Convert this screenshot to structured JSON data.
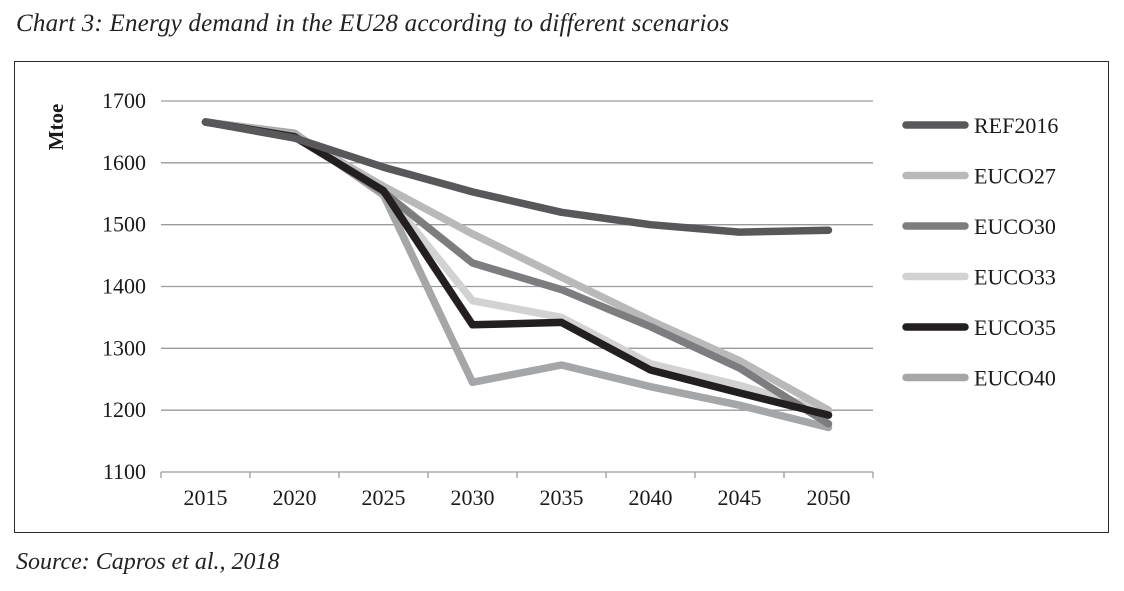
{
  "title": "Chart 3: Energy demand in the EU28 according to different scenarios",
  "source": "Source: Capros et al., 2018",
  "chart_data": {
    "type": "line",
    "title": "Chart 3: Energy demand in the EU28 according to different scenarios",
    "xlabel": "",
    "ylabel": "Mtoe",
    "x": [
      "2015",
      "2020",
      "2025",
      "2030",
      "2035",
      "2040",
      "2045",
      "2050"
    ],
    "ylim": [
      1100,
      1700
    ],
    "yticks": [
      1100,
      1200,
      1300,
      1400,
      1500,
      1600,
      1700
    ],
    "grid": true,
    "legend_position": "right",
    "series": [
      {
        "name": "REF2016",
        "color": "#58585a",
        "values": [
          1666,
          1640,
          1593,
          1553,
          1520,
          1500,
          1488,
          1491
        ]
      },
      {
        "name": "EUCO27",
        "color": "#b9b9b9",
        "values": [
          1666,
          1645,
          1562,
          1485,
          1415,
          1345,
          1280,
          1200
        ]
      },
      {
        "name": "EUCO30",
        "color": "#7d7d7f",
        "values": [
          1666,
          1643,
          1553,
          1438,
          1395,
          1335,
          1268,
          1178
        ]
      },
      {
        "name": "EUCO33",
        "color": "#d2d2d2",
        "values": [
          1666,
          1644,
          1555,
          1377,
          1350,
          1275,
          1240,
          1198
        ]
      },
      {
        "name": "EUCO35",
        "color": "#231f20",
        "values": [
          1666,
          1642,
          1555,
          1338,
          1342,
          1265,
          1228,
          1192
        ]
      },
      {
        "name": "EUCO40",
        "color": "#a5a6a8",
        "values": [
          1666,
          1648,
          1548,
          1245,
          1273,
          1238,
          1208,
          1172
        ]
      }
    ]
  }
}
